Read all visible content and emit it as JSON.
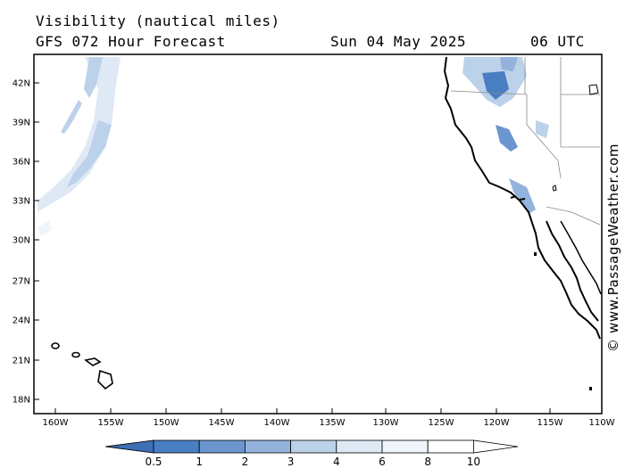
{
  "header": {
    "title": "Visibility (nautical miles)",
    "subtitle": "GFS 072 Hour Forecast",
    "date": "Sun 04 May 2025",
    "time": "06 UTC"
  },
  "credit": "© www.PassageWeather.com",
  "map": {
    "lat_labels": [
      "42N",
      "39N",
      "36N",
      "33N",
      "30N",
      "27N",
      "24N",
      "21N",
      "18N"
    ],
    "lon_labels": [
      "160W",
      "155W",
      "150W",
      "145W",
      "140W",
      "135W",
      "130W",
      "125W",
      "120W",
      "115W",
      "110W"
    ],
    "land_color": "#ffffff",
    "coast_color": "#000000",
    "border_color": "#888888"
  },
  "colorbar": {
    "labels": [
      "0.5",
      "1",
      "2",
      "3",
      "4",
      "6",
      "8",
      "10"
    ],
    "colors": [
      "#3e6fb5",
      "#4a7ec2",
      "#6b95cf",
      "#93b3dc",
      "#bcd1ea",
      "#dfe9f5",
      "#f0f5fb",
      "#ffffff"
    ]
  }
}
